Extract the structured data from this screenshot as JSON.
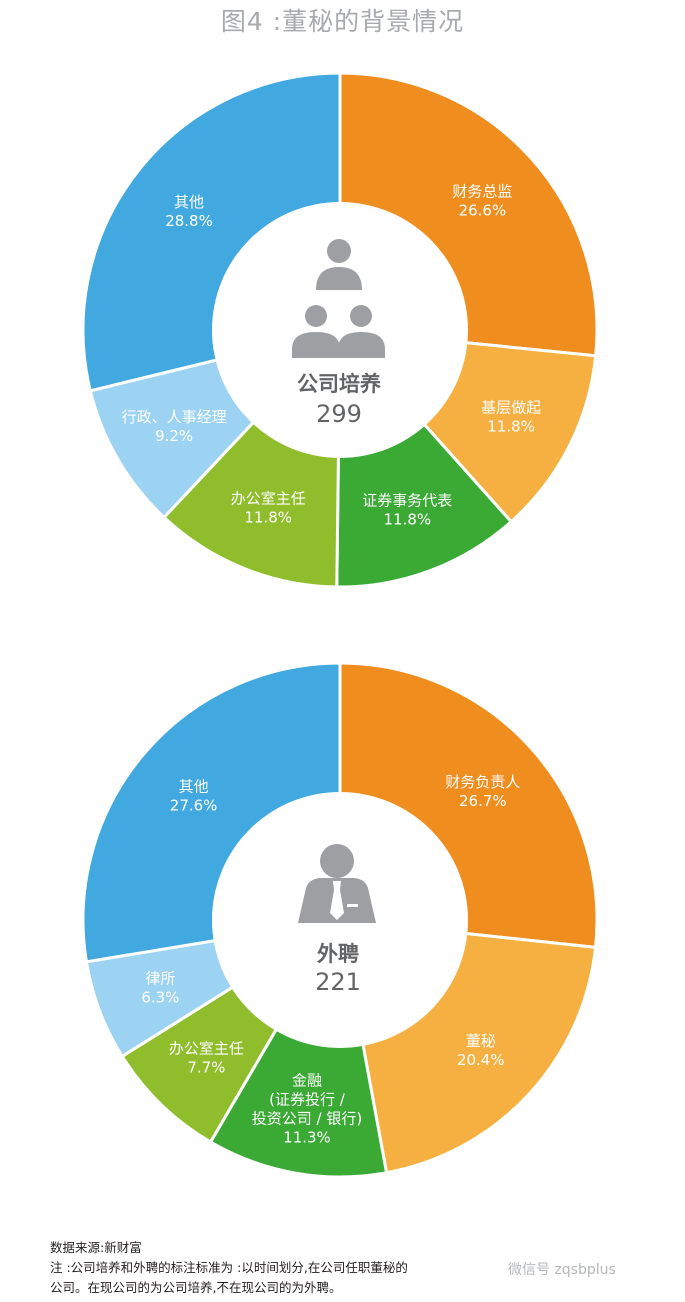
{
  "title": "图4 :董秘的背景情况",
  "chart_data": [
    {
      "type": "pie",
      "center_label": "公司培养",
      "center_value": "299",
      "center_icon": "group-people-icon",
      "slices": [
        {
          "label": "财务总监",
          "value": 26.6,
          "value_text": "26.6%",
          "color": "#ef8e1f"
        },
        {
          "label": "基层做起",
          "value": 11.8,
          "value_text": "11.8%",
          "color": "#f6b042"
        },
        {
          "label": "证券事务代表",
          "value": 11.8,
          "value_text": "11.8%",
          "color": "#3aaa35"
        },
        {
          "label": "办公室主任",
          "value": 11.8,
          "value_text": "11.8%",
          "color": "#8fbd2c"
        },
        {
          "label": "行政、人事经理",
          "value": 9.2,
          "value_text": "9.2%",
          "color": "#9cd2f2"
        },
        {
          "label": "其他",
          "value": 28.8,
          "value_text": "28.8%",
          "color": "#41a9e0"
        }
      ]
    },
    {
      "type": "pie",
      "center_label": "外聘",
      "center_value": "221",
      "center_icon": "businessman-icon",
      "slices": [
        {
          "label": "财务负责人",
          "value": 26.7,
          "value_text": "26.7%",
          "color": "#ef8e1f"
        },
        {
          "label": "董秘",
          "value": 20.4,
          "value_text": "20.4%",
          "color": "#f6b042"
        },
        {
          "label": "金融\n(证券投行 /\n投资公司 / 银行)",
          "value": 11.3,
          "value_text": "11.3%",
          "color": "#3aaa35"
        },
        {
          "label": "办公室主任",
          "value": 7.7,
          "value_text": "7.7%",
          "color": "#8fbd2c"
        },
        {
          "label": "律所",
          "value": 6.3,
          "value_text": "6.3%",
          "color": "#9cd2f2"
        },
        {
          "label": "其他",
          "value": 27.6,
          "value_text": "27.6%",
          "color": "#41a9e0"
        }
      ]
    }
  ],
  "footer": {
    "source": "数据来源:新财富",
    "note_line1": "注 :公司培养和外聘的标注标准为 :以时间划分,在公司任职董秘的",
    "note_line2": "公司。在现公司的为公司培养,不在现公司的为外聘。"
  },
  "watermark": "微信号 zqsbplus",
  "colors": {
    "title": "#a7a9ac",
    "center_text": "#636466",
    "icon": "#9d9fa2",
    "separator": "#ffffff"
  }
}
